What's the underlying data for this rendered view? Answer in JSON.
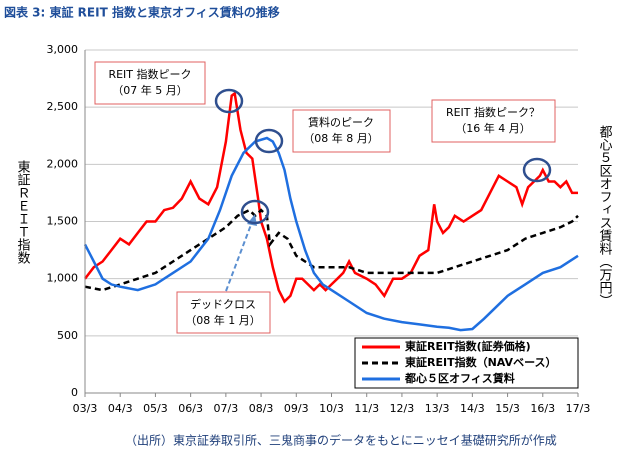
{
  "chart_data": {
    "type": "line",
    "title": "図表 3: 東証 REIT 指数と東京オフィス賃料の推移",
    "y_label": "東証ＲＥＩＴ指数",
    "y2_label": "都心５区オフィス賃料（万円）",
    "source": "（出所）東京証券取引所、三鬼商事のデータをもとにニッセイ基礎研究所が作成",
    "xlim": [
      0,
      168
    ],
    "xticks": [
      {
        "value": 0,
        "label": "03/3"
      },
      {
        "value": 12,
        "label": "04/3"
      },
      {
        "value": 24,
        "label": "05/3"
      },
      {
        "value": 36,
        "label": "06/3"
      },
      {
        "value": 48,
        "label": "07/3"
      },
      {
        "value": 60,
        "label": "08/3"
      },
      {
        "value": 72,
        "label": "09/3"
      },
      {
        "value": 84,
        "label": "10/3"
      },
      {
        "value": 96,
        "label": "11/3"
      },
      {
        "value": 108,
        "label": "12/3"
      },
      {
        "value": 120,
        "label": "13/3"
      },
      {
        "value": 132,
        "label": "14/3"
      },
      {
        "value": 144,
        "label": "15/3"
      },
      {
        "value": 156,
        "label": "16/3"
      },
      {
        "value": 168,
        "label": "17/3"
      }
    ],
    "ylim": [
      0,
      3000
    ],
    "yticks": [
      0,
      500,
      {
        "value": 1000,
        "label": "1,000"
      },
      {
        "value": 1500,
        "label": "1,500"
      },
      {
        "value": 2000,
        "label": "2,000"
      },
      {
        "value": 2500,
        "label": "2,500"
      },
      {
        "value": 3000,
        "label": "3,000"
      }
    ],
    "grid": true,
    "series": [
      {
        "name": "東証REIT指数(証券価格)",
        "color": "#ff0000",
        "dash": false,
        "x": [
          0,
          3,
          6,
          9,
          12,
          15,
          18,
          21,
          24,
          27,
          30,
          33,
          36,
          39,
          42,
          45,
          48,
          50,
          51,
          53,
          55,
          57,
          59,
          60,
          62,
          64,
          66,
          68,
          70,
          72,
          74,
          76,
          78,
          80,
          82,
          84,
          86,
          88,
          90,
          92,
          96,
          99,
          102,
          105,
          108,
          111,
          114,
          117,
          119,
          120,
          122,
          124,
          126,
          129,
          132,
          135,
          138,
          141,
          144,
          147,
          149,
          151,
          153,
          155,
          156,
          158,
          160,
          162,
          164,
          166,
          168
        ],
        "values": [
          1000,
          1100,
          1150,
          1250,
          1350,
          1300,
          1400,
          1500,
          1500,
          1600,
          1620,
          1700,
          1850,
          1700,
          1650,
          1800,
          2200,
          2600,
          2620,
          2300,
          2100,
          2050,
          1700,
          1500,
          1350,
          1100,
          900,
          800,
          850,
          1000,
          1000,
          950,
          900,
          950,
          900,
          950,
          1000,
          1050,
          1150,
          1050,
          1000,
          950,
          850,
          1000,
          1000,
          1050,
          1200,
          1250,
          1650,
          1500,
          1400,
          1450,
          1550,
          1500,
          1550,
          1600,
          1750,
          1900,
          1850,
          1800,
          1650,
          1800,
          1850,
          1900,
          1950,
          1850,
          1850,
          1800,
          1850,
          1750,
          1750
        ]
      },
      {
        "name": "東証REIT指数（NAVベース）",
        "color": "#000000",
        "dash": true,
        "x": [
          0,
          6,
          12,
          18,
          24,
          30,
          36,
          42,
          48,
          52,
          56,
          58,
          60,
          62,
          63,
          66,
          69,
          72,
          78,
          84,
          90,
          96,
          108,
          114,
          120,
          126,
          132,
          138,
          144,
          150,
          156,
          162,
          166,
          168
        ],
        "values": [
          930,
          900,
          950,
          1000,
          1050,
          1150,
          1250,
          1350,
          1450,
          1550,
          1600,
          1550,
          1600,
          1550,
          1300,
          1400,
          1350,
          1200,
          1100,
          1100,
          1100,
          1050,
          1050,
          1050,
          1050,
          1100,
          1150,
          1200,
          1250,
          1350,
          1400,
          1450,
          1500,
          1550
        ]
      },
      {
        "name": "都心５区オフィス賃料",
        "color": "#1f6fe0",
        "dash": false,
        "x": [
          0,
          3,
          6,
          9,
          12,
          18,
          24,
          30,
          36,
          42,
          46,
          50,
          54,
          58,
          62,
          64,
          66,
          68,
          70,
          72,
          75,
          78,
          81,
          84,
          90,
          96,
          102,
          108,
          114,
          120,
          124,
          128,
          132,
          136,
          140,
          144,
          150,
          156,
          162,
          168
        ],
        "values": [
          1300,
          1150,
          1000,
          950,
          930,
          900,
          950,
          1050,
          1150,
          1350,
          1600,
          1900,
          2100,
          2200,
          2230,
          2200,
          2100,
          1950,
          1700,
          1500,
          1250,
          1050,
          950,
          900,
          800,
          700,
          650,
          620,
          600,
          580,
          570,
          550,
          560,
          650,
          750,
          850,
          950,
          1050,
          1100,
          1200
        ]
      }
    ],
    "annotations": [
      [
        "REIT 指数ピーク",
        "（07 年 5 月）"
      ],
      [
        "賃料のピーク",
        "（08 年 8 月）"
      ],
      [
        "REIT 指数ピーク？",
        "（16 年 4 月）"
      ],
      [
        "デッドクロス",
        "（08 年 1 月）"
      ]
    ]
  }
}
